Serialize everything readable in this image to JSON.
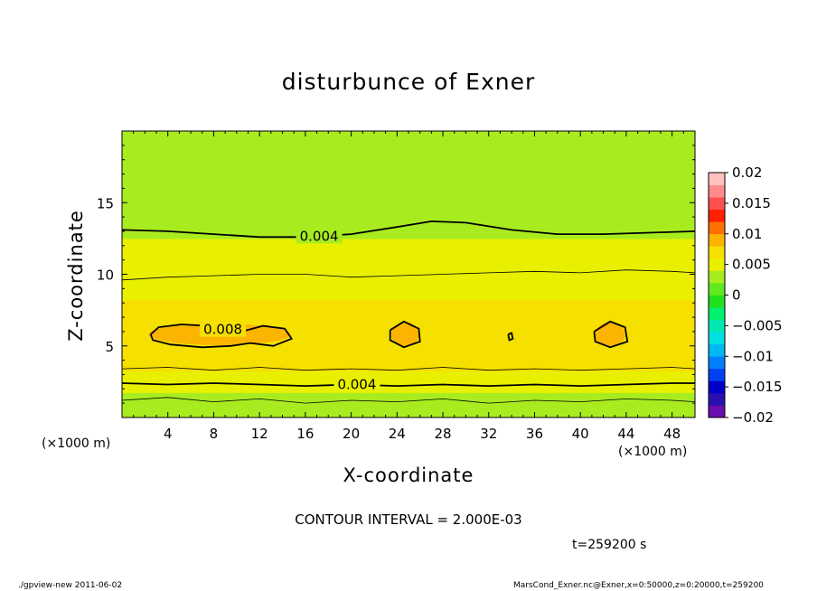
{
  "chart_data": {
    "type": "heatmap",
    "title": "disturbunce of Exner",
    "xlabel": "X-coordinate",
    "ylabel": "Z-coordinate",
    "x_unit_left": "(×1000 m)",
    "x_unit_right": "(×1000 m)",
    "xlim": [
      0,
      50
    ],
    "ylim": [
      0,
      20
    ],
    "x_ticks": [
      4,
      8,
      12,
      16,
      20,
      24,
      28,
      32,
      36,
      40,
      44,
      48
    ],
    "y_ticks": [
      5,
      10,
      15
    ],
    "contour_interval_text": "CONTOUR INTERVAL = 2.000E-03",
    "colorbar": {
      "range": [
        -0.02,
        0.02
      ],
      "tick_labels": [
        "0.02",
        "0.015",
        "0.01",
        "0.005",
        "0",
        "−0.005",
        "−0.01",
        "−0.015",
        "−0.02"
      ],
      "colors": [
        "#6a0dad",
        "#2a10b0",
        "#0000c8",
        "#0040f0",
        "#0080ff",
        "#00b8f0",
        "#00e0e0",
        "#00e8b0",
        "#00f070",
        "#20e020",
        "#60e820",
        "#a8ec20",
        "#e8f000",
        "#f5e000",
        "#fbb400",
        "#ff7000",
        "#ff2000",
        "#ff5050",
        "#ff8c8c",
        "#ffc0c0"
      ]
    },
    "band_profile": {
      "z": [
        0,
        0.5,
        1.0,
        1.5,
        2.0,
        2.5,
        3.0,
        3.5,
        4.0,
        5.0,
        6.5,
        7.5,
        8.5,
        9.5,
        10.5,
        11.5,
        12.5,
        13.5,
        14.5,
        15.5,
        17.0,
        18.5,
        20.0
      ],
      "value": [
        0.0036,
        0.0032,
        0.0034,
        0.0038,
        0.0043,
        0.0048,
        0.0055,
        0.0062,
        0.0068,
        0.0074,
        0.0073,
        0.0066,
        0.0059,
        0.0051,
        0.0046,
        0.0042,
        0.004,
        0.0036,
        0.0031,
        0.0027,
        0.0024,
        0.0027,
        0.0031
      ]
    },
    "contour_lines": [
      {
        "label": "0.004",
        "label_x": 17.2,
        "points": [
          [
            0,
            13.1
          ],
          [
            4,
            13.0
          ],
          [
            8,
            12.8
          ],
          [
            12,
            12.6
          ],
          [
            16,
            12.6
          ],
          [
            20,
            12.8
          ],
          [
            24,
            13.3
          ],
          [
            27,
            13.7
          ],
          [
            30,
            13.6
          ],
          [
            34,
            13.1
          ],
          [
            38,
            12.8
          ],
          [
            42,
            12.8
          ],
          [
            46,
            12.9
          ],
          [
            50,
            13.0
          ]
        ]
      },
      {
        "label": "0.004",
        "label_x": 20.5,
        "points": [
          [
            0,
            2.4
          ],
          [
            4,
            2.3
          ],
          [
            8,
            2.4
          ],
          [
            12,
            2.3
          ],
          [
            16,
            2.2
          ],
          [
            20,
            2.3
          ],
          [
            24,
            2.2
          ],
          [
            28,
            2.3
          ],
          [
            32,
            2.2
          ],
          [
            36,
            2.3
          ],
          [
            40,
            2.2
          ],
          [
            44,
            2.3
          ],
          [
            48,
            2.4
          ],
          [
            50,
            2.4
          ]
        ]
      },
      {
        "label": "0.008",
        "label_x": 8.8,
        "points": [
          [
            2.5,
            5.8
          ],
          [
            3.2,
            6.3
          ],
          [
            5.2,
            6.5
          ],
          [
            7.5,
            6.4
          ],
          [
            10,
            5.9
          ],
          [
            12.3,
            6.4
          ],
          [
            14.2,
            6.2
          ],
          [
            14.8,
            5.5
          ],
          [
            13.2,
            5.0
          ],
          [
            11.2,
            5.2
          ],
          [
            9.5,
            5.0
          ],
          [
            7.0,
            4.9
          ],
          [
            4.2,
            5.1
          ],
          [
            2.7,
            5.4
          ],
          [
            2.5,
            5.8
          ]
        ]
      },
      {
        "label": "",
        "label_x": 0,
        "points": [
          [
            23.4,
            6.1
          ],
          [
            24.6,
            6.7
          ],
          [
            25.9,
            6.2
          ],
          [
            26.0,
            5.3
          ],
          [
            24.6,
            4.9
          ],
          [
            23.4,
            5.4
          ],
          [
            23.4,
            6.1
          ]
        ]
      },
      {
        "label": "",
        "label_x": 0,
        "points": [
          [
            41.2,
            6.0
          ],
          [
            42.6,
            6.7
          ],
          [
            43.9,
            6.3
          ],
          [
            44.1,
            5.3
          ],
          [
            42.6,
            4.9
          ],
          [
            41.3,
            5.3
          ],
          [
            41.2,
            6.0
          ]
        ]
      },
      {
        "label": "",
        "label_x": 0,
        "points": [
          [
            33.7,
            5.8
          ],
          [
            34.0,
            5.9
          ],
          [
            34.1,
            5.5
          ],
          [
            33.8,
            5.4
          ],
          [
            33.7,
            5.8
          ]
        ]
      }
    ],
    "thin_lines": [
      {
        "points": [
          [
            0,
            9.6
          ],
          [
            4,
            9.8
          ],
          [
            8,
            9.9
          ],
          [
            12,
            10.0
          ],
          [
            16,
            10.0
          ],
          [
            20,
            9.8
          ],
          [
            24,
            9.9
          ],
          [
            28,
            10.0
          ],
          [
            32,
            10.1
          ],
          [
            36,
            10.2
          ],
          [
            40,
            10.1
          ],
          [
            44,
            10.3
          ],
          [
            48,
            10.2
          ],
          [
            50,
            10.1
          ]
        ]
      },
      {
        "points": [
          [
            0,
            3.4
          ],
          [
            4,
            3.5
          ],
          [
            8,
            3.3
          ],
          [
            12,
            3.5
          ],
          [
            16,
            3.3
          ],
          [
            20,
            3.4
          ],
          [
            24,
            3.3
          ],
          [
            28,
            3.5
          ],
          [
            32,
            3.3
          ],
          [
            36,
            3.4
          ],
          [
            40,
            3.3
          ],
          [
            44,
            3.4
          ],
          [
            48,
            3.5
          ],
          [
            50,
            3.4
          ]
        ]
      },
      {
        "points": [
          [
            0,
            1.2
          ],
          [
            4,
            1.4
          ],
          [
            8,
            1.1
          ],
          [
            12,
            1.3
          ],
          [
            16,
            1.0
          ],
          [
            20,
            1.2
          ],
          [
            24,
            1.1
          ],
          [
            28,
            1.3
          ],
          [
            32,
            1.0
          ],
          [
            36,
            1.2
          ],
          [
            40,
            1.1
          ],
          [
            44,
            1.3
          ],
          [
            48,
            1.2
          ],
          [
            50,
            1.1
          ]
        ]
      }
    ],
    "high_cells": [
      {
        "x": 8.5,
        "z": 5.8,
        "rx": 6.2,
        "rz": 0.75
      },
      {
        "x": 24.7,
        "z": 5.8,
        "rx": 1.2,
        "rz": 0.85
      },
      {
        "x": 42.6,
        "z": 5.8,
        "rx": 1.3,
        "rz": 0.85
      }
    ]
  },
  "footer": {
    "time": "t=259200 s",
    "left": "./gpview-new   2011-06-02",
    "right": "MarsCond_Exner.nc@Exner,x=0:50000,z=0:20000,t=259200"
  }
}
